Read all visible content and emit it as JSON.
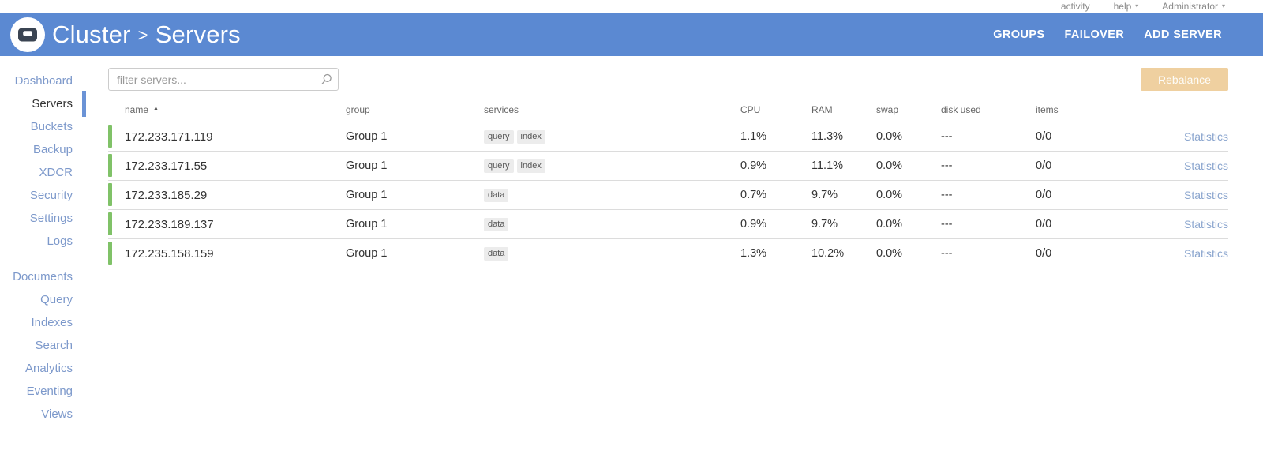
{
  "topbar": {
    "activity_label": "activity",
    "help_label": "help",
    "user_label": "Administrator"
  },
  "icons": {
    "caret_down": "▾",
    "sort_asc": "▲"
  },
  "header": {
    "breadcrumb_cluster": "Cluster",
    "breadcrumb_separator": ">",
    "breadcrumb_page": "Servers",
    "actions": [
      {
        "label": "GROUPS"
      },
      {
        "label": "FAILOVER"
      },
      {
        "label": "ADD SERVER"
      }
    ]
  },
  "sidebar": {
    "active": "Servers",
    "groups": [
      [
        "Dashboard",
        "Servers",
        "Buckets",
        "Backup",
        "XDCR",
        "Security",
        "Settings",
        "Logs"
      ],
      [
        "Documents",
        "Query",
        "Indexes",
        "Search",
        "Analytics",
        "Eventing",
        "Views"
      ]
    ]
  },
  "toolbar": {
    "filter_placeholder": "filter servers...",
    "rebalance_label": "Rebalance"
  },
  "table": {
    "columns": [
      "name",
      "group",
      "services",
      "CPU",
      "RAM",
      "swap",
      "disk used",
      "items",
      ""
    ],
    "stats_label": "Statistics",
    "rows": [
      {
        "name": "172.233.171.119",
        "group": "Group 1",
        "services": [
          "query",
          "index"
        ],
        "cpu": "1.1%",
        "ram": "11.3%",
        "swap": "0.0%",
        "disk_used": "---",
        "items": "0/0"
      },
      {
        "name": "172.233.171.55",
        "group": "Group 1",
        "services": [
          "query",
          "index"
        ],
        "cpu": "0.9%",
        "ram": "11.1%",
        "swap": "0.0%",
        "disk_used": "---",
        "items": "0/0"
      },
      {
        "name": "172.233.185.29",
        "group": "Group 1",
        "services": [
          "data"
        ],
        "cpu": "0.7%",
        "ram": "9.7%",
        "swap": "0.0%",
        "disk_used": "---",
        "items": "0/0"
      },
      {
        "name": "172.233.189.137",
        "group": "Group 1",
        "services": [
          "data"
        ],
        "cpu": "0.9%",
        "ram": "9.7%",
        "swap": "0.0%",
        "disk_used": "---",
        "items": "0/0"
      },
      {
        "name": "172.235.158.159",
        "group": "Group 1",
        "services": [
          "data"
        ],
        "cpu": "1.3%",
        "ram": "10.2%",
        "swap": "0.0%",
        "disk_used": "---",
        "items": "0/0"
      }
    ]
  },
  "colors": {
    "header_blue": "#5b89d2",
    "active_indicator_blue": "#6b93d6",
    "sidebar_link_blue": "#7d99cb",
    "stats_link_blue": "#8aa5ce",
    "healthy_green": "#80c268",
    "rebalance_disabled_bg": "#efd0a0",
    "badge_bg": "#ececec"
  }
}
